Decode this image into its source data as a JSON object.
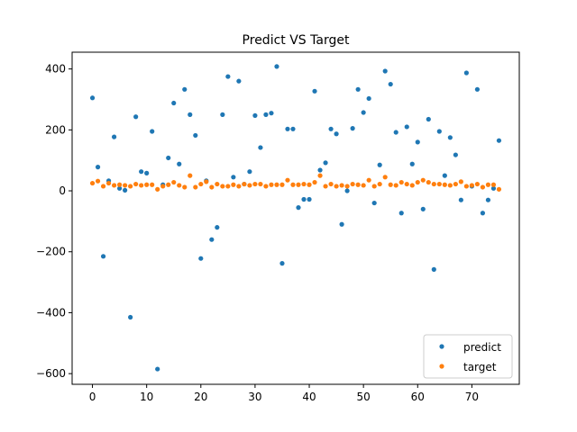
{
  "chart_data": {
    "type": "scatter",
    "title": "Predict VS Target",
    "xlabel": "",
    "ylabel": "",
    "xlim": [
      -3.75,
      78.75
    ],
    "ylim": [
      -635,
      455
    ],
    "x_ticks": [
      0,
      10,
      20,
      30,
      40,
      50,
      60,
      70
    ],
    "x_tick_labels": [
      "0",
      "10",
      "20",
      "30",
      "40",
      "50",
      "60",
      "70"
    ],
    "y_ticks": [
      -600,
      -400,
      -200,
      0,
      200,
      400
    ],
    "y_tick_labels": [
      "−600",
      "−400",
      "−200",
      "0",
      "200",
      "400"
    ],
    "grid": false,
    "legend": {
      "position": "lower-right",
      "entries": [
        "predict",
        "target"
      ]
    },
    "series": [
      {
        "name": "predict",
        "color": "#1f77b4",
        "values": [
          305,
          78,
          -215,
          33,
          177,
          8,
          2,
          -415,
          243,
          63,
          58,
          195,
          -585,
          20,
          108,
          288,
          88,
          333,
          250,
          182,
          -222,
          33,
          -160,
          -120,
          250,
          375,
          45,
          360,
          22,
          63,
          247,
          142,
          250,
          255,
          408,
          -238,
          203,
          203,
          -55,
          -28,
          -28,
          327,
          68,
          92,
          203,
          187,
          -110,
          0,
          205,
          333,
          257,
          303,
          -40,
          85,
          393,
          350,
          192,
          -73,
          210,
          88,
          160,
          -60,
          235,
          -258,
          195,
          50,
          175,
          118,
          -30,
          387,
          15,
          333,
          -73,
          -30,
          8,
          165
        ]
      },
      {
        "name": "target",
        "color": "#ff7f0e",
        "values": [
          25,
          32,
          15,
          25,
          18,
          20,
          18,
          15,
          22,
          18,
          20,
          20,
          5,
          15,
          20,
          28,
          18,
          12,
          50,
          12,
          22,
          30,
          12,
          22,
          15,
          15,
          20,
          15,
          22,
          18,
          22,
          22,
          15,
          20,
          20,
          20,
          35,
          20,
          20,
          22,
          20,
          28,
          50,
          15,
          22,
          15,
          18,
          15,
          22,
          20,
          18,
          35,
          15,
          22,
          45,
          20,
          18,
          28,
          22,
          18,
          28,
          35,
          28,
          22,
          22,
          20,
          18,
          22,
          30,
          15,
          18,
          22,
          12,
          20,
          20,
          5
        ]
      }
    ]
  }
}
